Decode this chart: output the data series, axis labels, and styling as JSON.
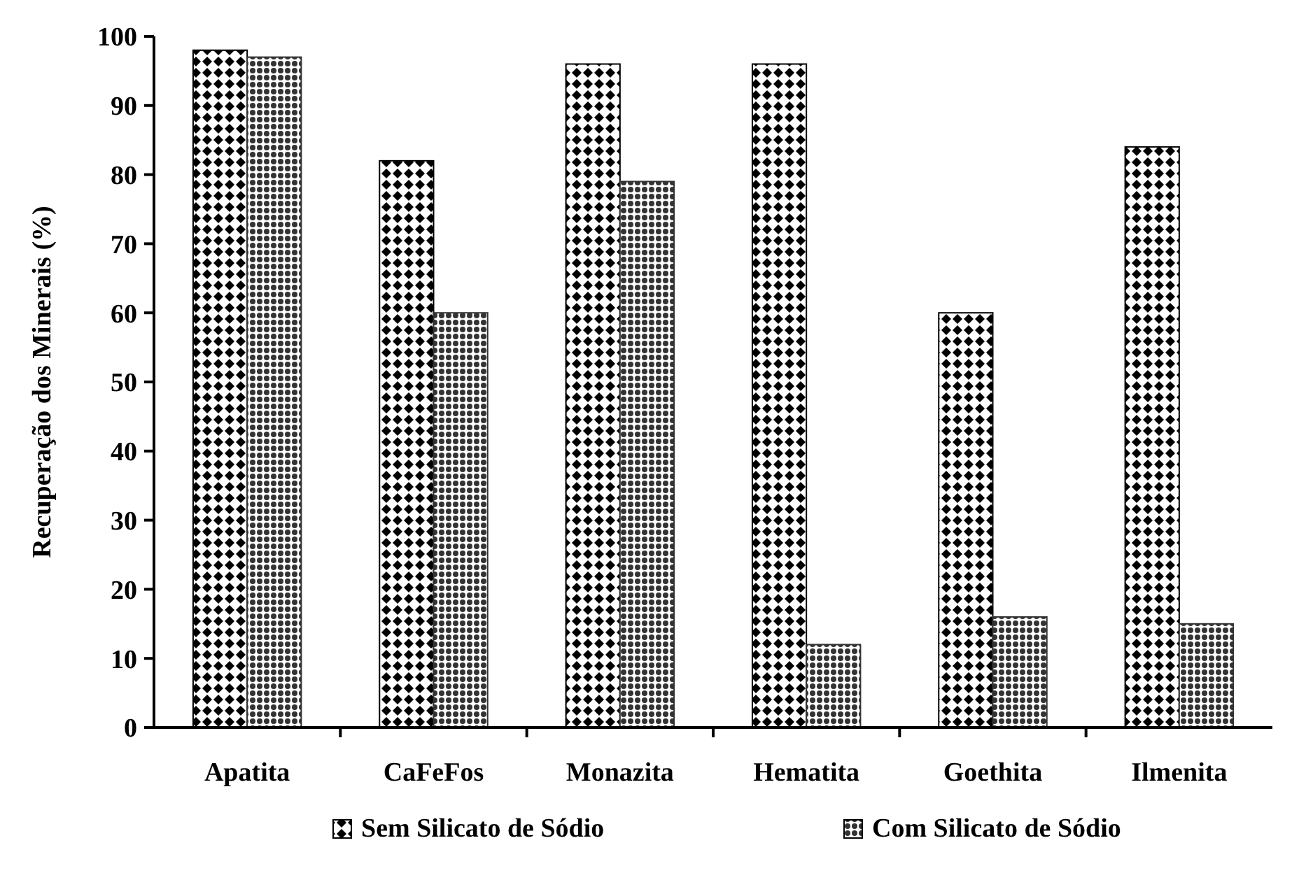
{
  "chart_data": {
    "type": "bar",
    "ylabel": "Recuperação dos Minerais (%)",
    "categories": [
      "Apatita",
      "CaFeFos",
      "Monazita",
      "Hematita",
      "Goethita",
      "Ilmenita"
    ],
    "series": [
      {
        "name": "Sem Silicato de Sódio",
        "color": "#000000",
        "values": [
          98,
          82,
          96,
          96,
          60,
          84
        ]
      },
      {
        "name": "Com Silicato de Sódio",
        "color": "#333333",
        "values": [
          97,
          60,
          79,
          12,
          16,
          15
        ]
      }
    ],
    "ylim": [
      0,
      100
    ],
    "yticks": [
      0,
      10,
      20,
      30,
      40,
      50,
      60,
      70,
      80,
      90,
      100
    ],
    "legend": "bottom"
  }
}
